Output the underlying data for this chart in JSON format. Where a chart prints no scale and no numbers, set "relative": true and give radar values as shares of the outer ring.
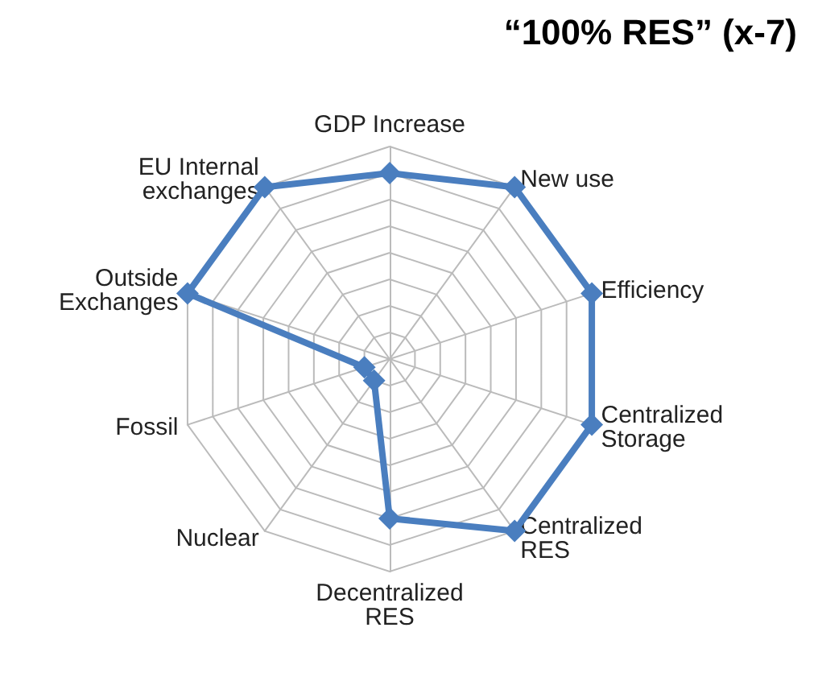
{
  "chart_data": {
    "type": "radar",
    "title": "“100% RES” (x-7)",
    "relative": true,
    "categories": [
      "GDP Increase",
      "New use",
      "Efficiency",
      "Centralized Storage",
      "Centralized RES",
      "Decentralized RES",
      "Nuclear",
      "Fossil",
      "Outside Exchanges",
      "EU Internal exchanges"
    ],
    "series": [
      {
        "color": "#4a7ebf",
        "values": [
          0.875,
          1,
          1,
          1,
          1,
          0.75,
          0.125,
          0.125,
          1,
          1
        ]
      }
    ],
    "marker": "diamond",
    "line_style": "solid",
    "grid": true
  }
}
